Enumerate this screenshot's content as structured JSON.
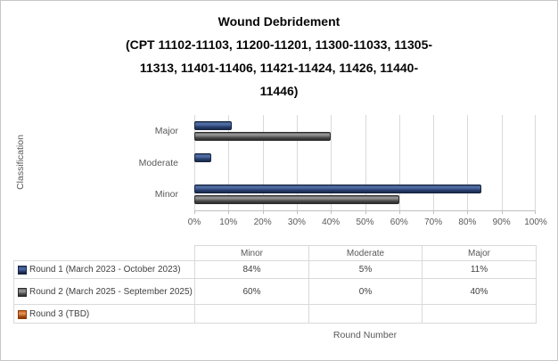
{
  "title": {
    "lines": [
      "Wound Debridement",
      "(CPT 11102-11103, 11200-11201, 11300-11033, 11305-",
      "11313, 11401-11406, 11421-11424, 11426, 11440-",
      "11446)"
    ],
    "full": "Wound Debridement (CPT 11102-11103, 11200-11201, 11300-11033, 11305-11313, 11401-11406, 11421-11424, 11426, 11440-11446)"
  },
  "axes": {
    "y_title": "Classification",
    "x_title": "Round Number"
  },
  "chart_data": {
    "type": "bar",
    "orientation": "horizontal",
    "title": "Wound Debridement (CPT 11102-11103, 11200-11201, 11300-11033, 11305-11313, 11401-11406, 11421-11424, 11426, 11440-11446)",
    "xlabel": "Round Number",
    "ylabel": "Classification",
    "categories": [
      "Major",
      "Moderate",
      "Minor"
    ],
    "series": [
      {
        "name": "Round 1 (March 2023 - October 2023)",
        "color": "#1F3864",
        "values": [
          11,
          5,
          84
        ]
      },
      {
        "name": "Round 2 (March 2025 - September 2025)",
        "color": "#595959",
        "values": [
          40,
          0,
          60
        ]
      },
      {
        "name": "Round 3 (TBD)",
        "color": "#C55A11",
        "values": [
          null,
          null,
          null
        ]
      }
    ],
    "xlim": [
      0,
      100
    ],
    "x_ticks": [
      "0%",
      "10%",
      "20%",
      "30%",
      "40%",
      "50%",
      "60%",
      "70%",
      "80%",
      "90%",
      "100%"
    ],
    "grid": true,
    "legend_position": "table-bottom"
  },
  "table": {
    "headers": [
      "",
      "Minor",
      "Moderate",
      "Major"
    ],
    "rows": [
      {
        "legend": "Round 1 (March 2023 - October 2023)",
        "values": [
          "84%",
          "5%",
          "11%"
        ]
      },
      {
        "legend": "Round 2 (March 2025 - September 2025)",
        "values": [
          "60%",
          "0%",
          "40%"
        ]
      },
      {
        "legend": "Round 3 (TBD)",
        "values": [
          "",
          "",
          ""
        ]
      }
    ]
  },
  "colors": {
    "series1": "#1F3864",
    "series2": "#595959",
    "series3": "#C55A11",
    "gridline": "#D9D9D9",
    "axis_text": "#595959"
  }
}
